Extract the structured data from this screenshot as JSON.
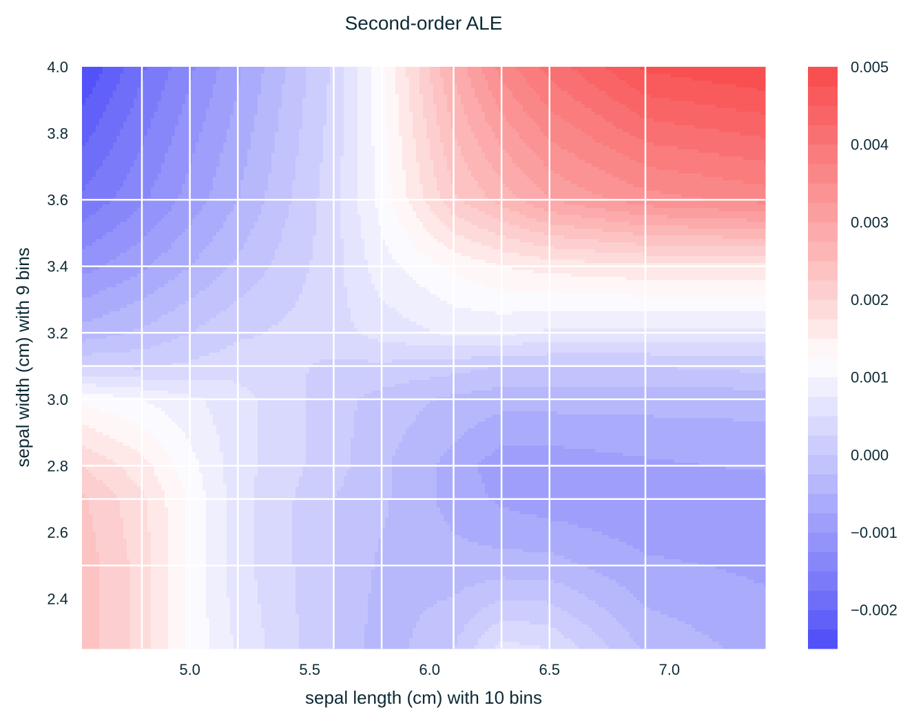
{
  "chart_data": {
    "type": "heatmap",
    "subtype": "filled-contour",
    "title": "Second-order ALE",
    "xlabel": "sepal length (cm) with 10 bins",
    "ylabel": "sepal width (cm) with 9 bins",
    "xlim": [
      4.55,
      7.4
    ],
    "ylim": [
      2.25,
      4.0
    ],
    "x_ticks": [
      5.0,
      5.5,
      6.0,
      6.5,
      7.0
    ],
    "x_tick_labels": [
      "5.0",
      "5.5",
      "6.0",
      "6.5",
      "7.0"
    ],
    "y_ticks": [
      2.4,
      2.6,
      2.8,
      3.0,
      3.2,
      3.4,
      3.6,
      3.8,
      4.0
    ],
    "y_tick_labels": [
      "2.4",
      "2.6",
      "2.8",
      "3.0",
      "3.2",
      "3.4",
      "3.6",
      "3.8",
      "4.0"
    ],
    "x_bin_edges": [
      4.55,
      4.8,
      5.0,
      5.2,
      5.6,
      5.8,
      6.1,
      6.3,
      6.5,
      6.9,
      7.4
    ],
    "y_bin_edges": [
      2.25,
      2.5,
      2.7,
      2.8,
      3.0,
      3.1,
      3.2,
      3.4,
      3.6,
      4.0
    ],
    "z": [
      [
        0.0024,
        0.0019,
        0.0012,
        0.0007,
        0.0,
        -0.0004,
        0.0,
        0.0006,
        0.0005,
        -0.0003,
        -0.0006
      ],
      [
        0.0024,
        0.0019,
        0.0012,
        0.0006,
        0.0,
        -0.0003,
        -0.0004,
        -0.0004,
        -0.0004,
        -0.0007,
        -0.0008
      ],
      [
        0.0023,
        0.0018,
        0.0012,
        0.0006,
        0.0,
        -0.0002,
        -0.0006,
        -0.0008,
        -0.0009,
        -0.001,
        -0.001
      ],
      [
        0.002,
        0.0016,
        0.0011,
        0.0006,
        0.0001,
        -0.0002,
        -0.0006,
        -0.0009,
        -0.0009,
        -0.0008,
        -0.0007
      ],
      [
        0.0012,
        0.001,
        0.0008,
        0.0006,
        0.0001,
        -0.0001,
        -0.0003,
        -0.0004,
        -0.0004,
        -0.0004,
        -0.0004
      ],
      [
        0.0002,
        0.0002,
        0.0003,
        0.0004,
        0.0002,
        0.0002,
        0.0001,
        0.0,
        0.0,
        0.0,
        0.0001
      ],
      [
        -0.0004,
        -0.0002,
        0.0,
        0.0002,
        0.0004,
        0.0006,
        0.0008,
        0.0008,
        0.0007,
        0.0007,
        0.0007
      ],
      [
        -0.0011,
        -0.0008,
        -0.0005,
        -0.0002,
        0.0004,
        0.0009,
        0.0013,
        0.0015,
        0.0016,
        0.0017,
        0.0017
      ],
      [
        -0.0017,
        -0.0013,
        -0.0009,
        -0.0005,
        0.0004,
        0.0011,
        0.0022,
        0.0026,
        0.003,
        0.0034,
        0.0036
      ],
      [
        -0.0025,
        -0.0018,
        -0.0013,
        -0.0008,
        0.0003,
        0.0012,
        0.0028,
        0.0036,
        0.0041,
        0.0048,
        0.005
      ]
    ],
    "colorbar": {
      "range": [
        -0.0025,
        0.005
      ],
      "levels_step": 0.00025,
      "tick_values": [
        -0.002,
        -0.001,
        0.0,
        0.001,
        0.002,
        0.003,
        0.004,
        0.005
      ],
      "tick_labels": [
        "−0.002",
        "−0.001",
        "0.000",
        "0.001",
        "0.002",
        "0.003",
        "0.004",
        "0.005"
      ],
      "colormap": "bwr",
      "low_color": "#4a4af8",
      "mid_color": "#ffffff",
      "high_color": "#f84a4c"
    },
    "grid": "bin edges (white)",
    "grid_color": "#ffffff"
  }
}
